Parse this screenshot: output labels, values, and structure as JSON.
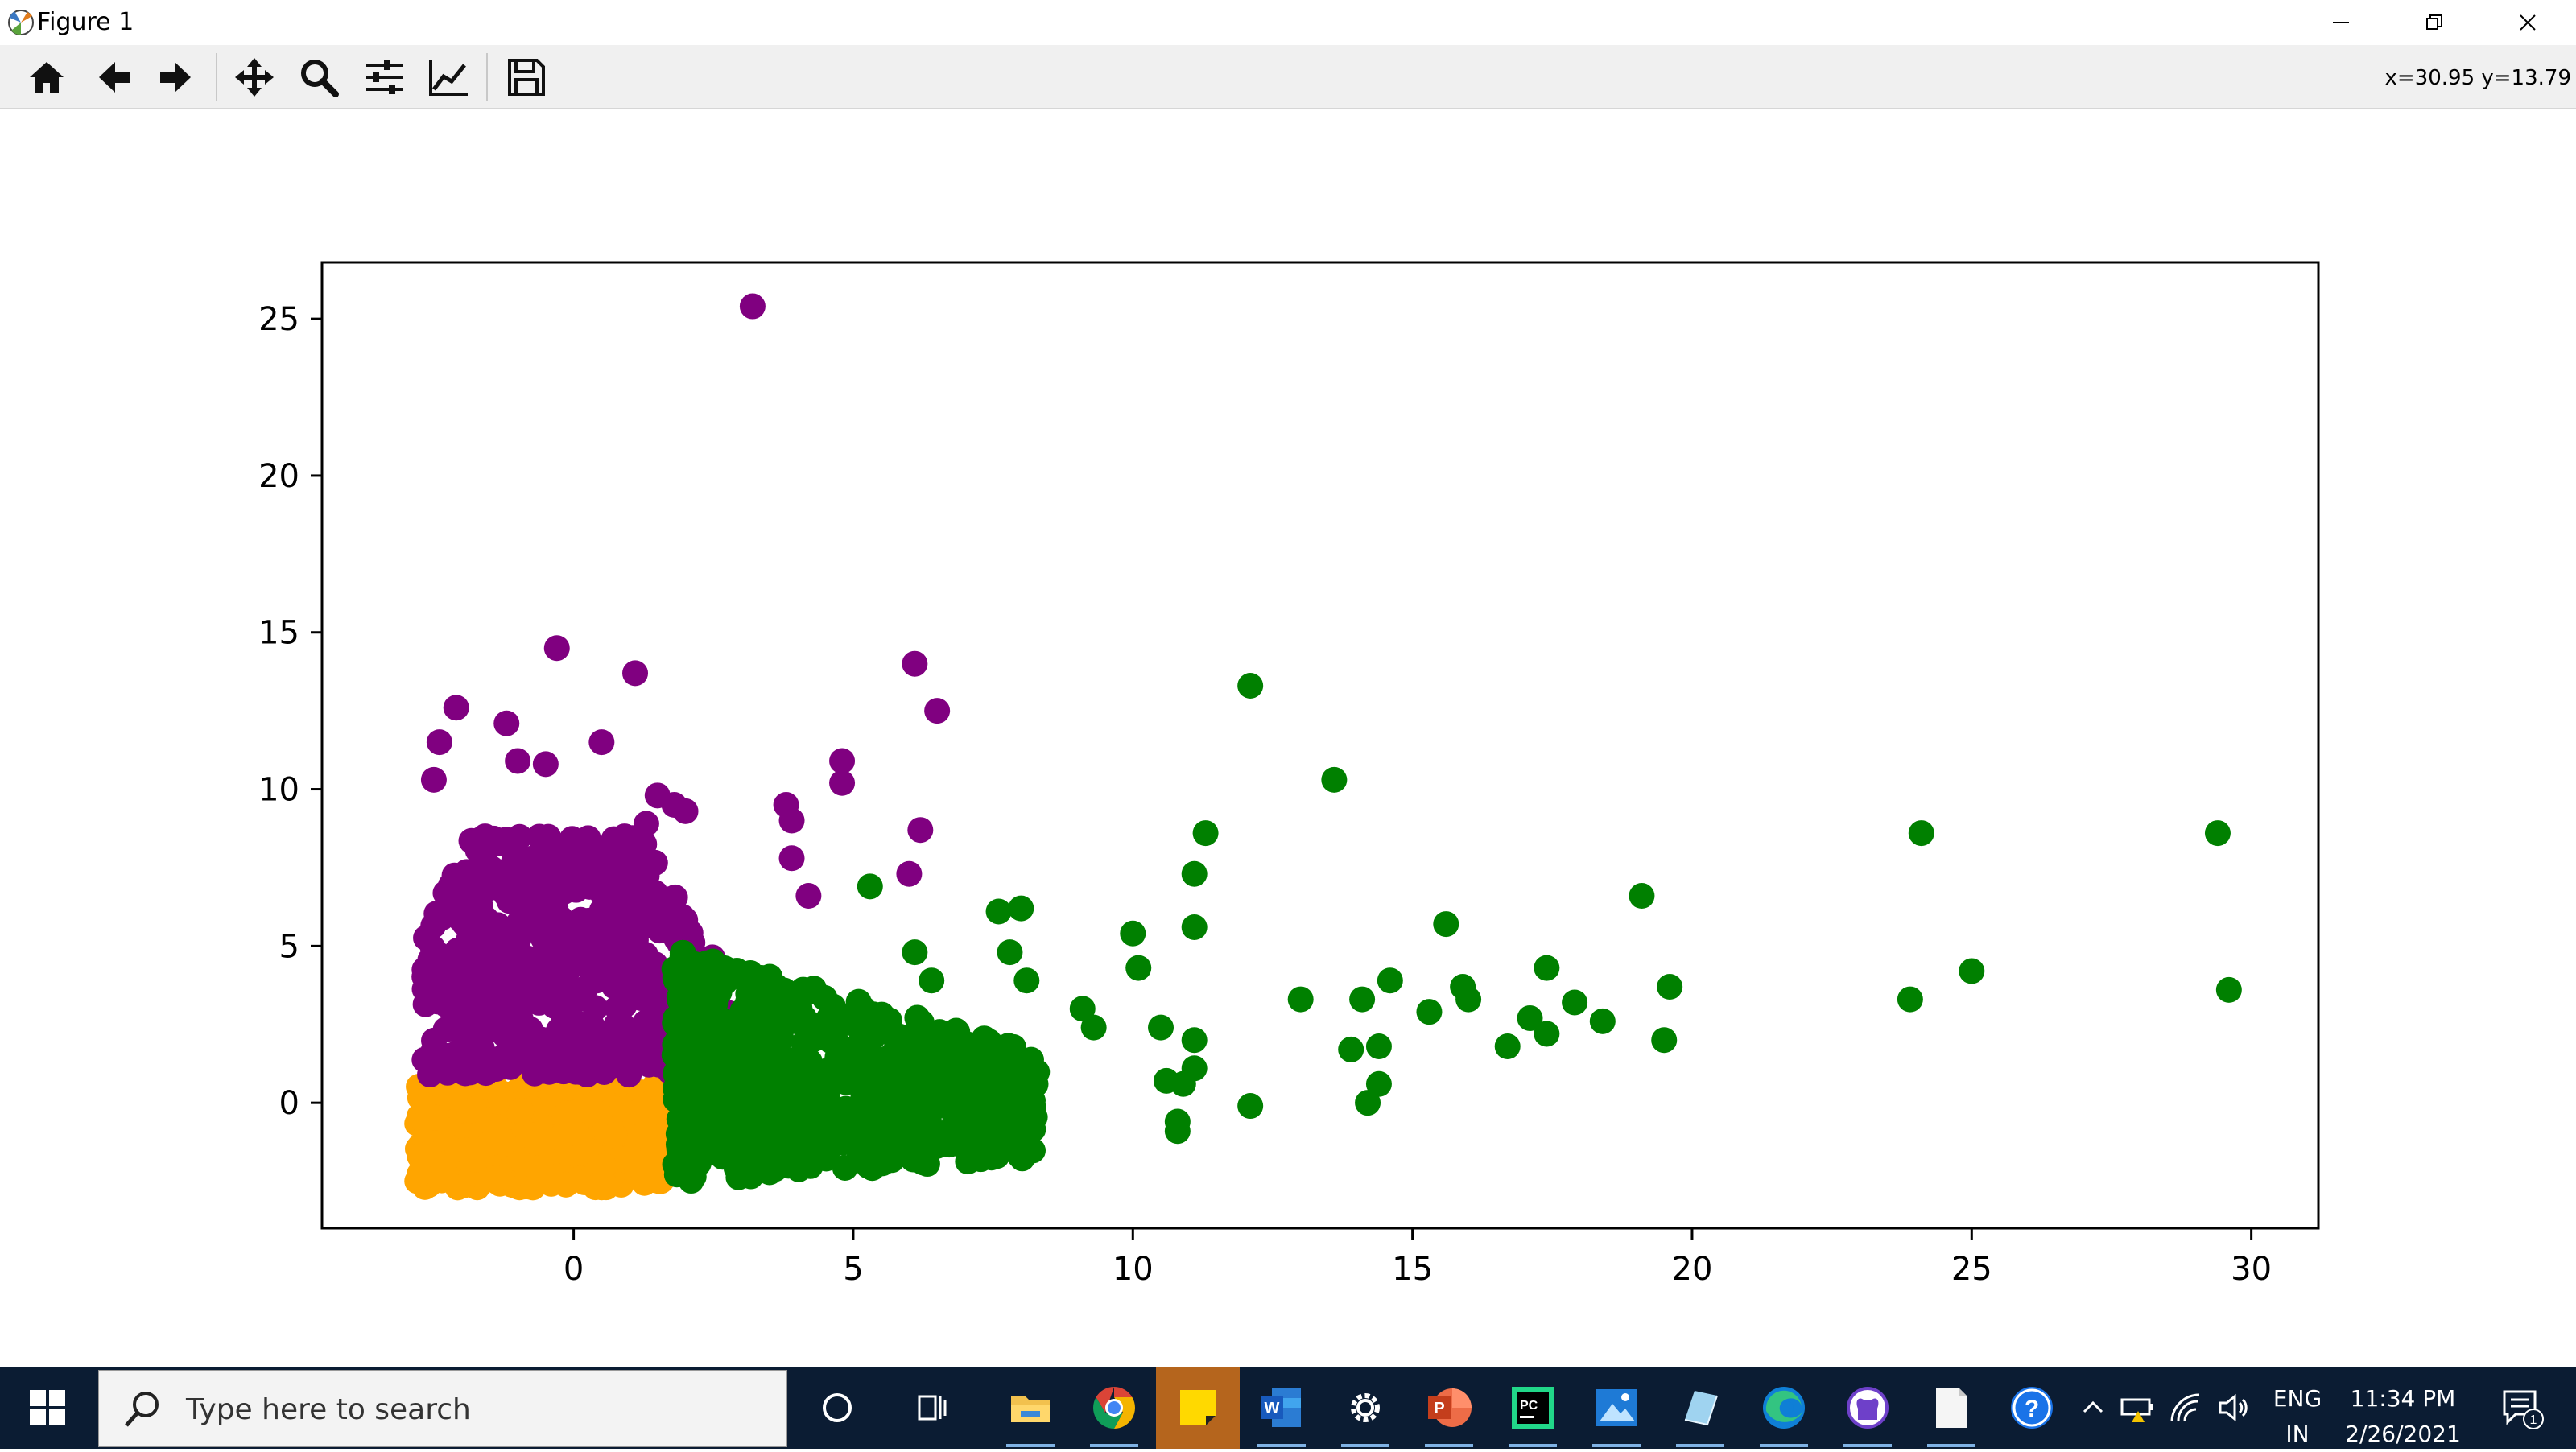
{
  "window": {
    "title": "Figure 1",
    "app_icon": "matplotlib-icon",
    "controls": [
      "minimize-icon",
      "restore-icon",
      "close-icon"
    ]
  },
  "toolbar": {
    "tools": [
      "home-icon",
      "back-arrow-icon",
      "forward-arrow-icon",
      "pan-move-icon",
      "zoom-magnifier-icon",
      "configure-subplots-icon",
      "edit-axis-icon",
      "save-icon"
    ],
    "coordinates": "x=30.95 y=13.79"
  },
  "chart_data": {
    "type": "scatter",
    "title": "",
    "xlabel": "",
    "ylabel": "",
    "xlim": [
      -4.5,
      31.2
    ],
    "ylim": [
      -4.0,
      26.8
    ],
    "xticks": [
      0,
      5,
      10,
      15,
      20,
      25,
      30
    ],
    "yticks": [
      0,
      5,
      10,
      15,
      20,
      25
    ],
    "xtick_labels": [
      "0",
      "5",
      "10",
      "15",
      "20",
      "25",
      "30"
    ],
    "ytick_labels": [
      "0",
      "5",
      "10",
      "15",
      "20",
      "25"
    ],
    "grid": false,
    "legend": "none",
    "clusters": [
      {
        "color": "#ffa500",
        "description_region": {
          "x": [
            -2.8,
            2.1
          ],
          "y": [
            -2.7,
            0.6
          ]
        },
        "count": 600,
        "points": []
      },
      {
        "color": "#800080",
        "region": {
          "x": [
            -2.8,
            4.0
          ],
          "y": [
            0.9,
            8.5
          ]
        },
        "count": 520,
        "points": [
          [
            3.2,
            25.4
          ],
          [
            -0.3,
            14.5
          ],
          [
            1.1,
            13.7
          ],
          [
            6.1,
            14.0
          ],
          [
            6.5,
            12.5
          ],
          [
            -2.1,
            12.6
          ],
          [
            -2.4,
            11.5
          ],
          [
            -1.2,
            12.1
          ],
          [
            0.5,
            11.5
          ],
          [
            -1.0,
            10.9
          ],
          [
            -0.5,
            10.8
          ],
          [
            -2.5,
            10.3
          ],
          [
            4.8,
            10.9
          ],
          [
            4.8,
            10.2
          ],
          [
            3.8,
            9.5
          ],
          [
            3.9,
            9.0
          ],
          [
            1.5,
            9.8
          ],
          [
            1.8,
            9.5
          ],
          [
            2.0,
            9.3
          ],
          [
            6.2,
            8.7
          ],
          [
            1.3,
            8.9
          ],
          [
            3.9,
            7.8
          ],
          [
            4.2,
            6.6
          ],
          [
            6.0,
            7.3
          ]
        ]
      },
      {
        "color": "#008000",
        "region": {
          "x": [
            1.8,
            8.0
          ],
          "y": [
            -2.6,
            5.0
          ]
        },
        "count": 650,
        "points": [
          [
            12.1,
            13.3
          ],
          [
            13.6,
            10.3
          ],
          [
            11.3,
            8.6
          ],
          [
            11.1,
            7.3
          ],
          [
            11.1,
            5.6
          ],
          [
            10.0,
            5.4
          ],
          [
            10.1,
            4.3
          ],
          [
            7.6,
            6.1
          ],
          [
            8.0,
            6.2
          ],
          [
            5.3,
            6.9
          ],
          [
            6.1,
            4.8
          ],
          [
            6.4,
            3.9
          ],
          [
            7.8,
            4.8
          ],
          [
            8.1,
            3.9
          ],
          [
            9.1,
            3.0
          ],
          [
            9.3,
            2.4
          ],
          [
            10.5,
            2.4
          ],
          [
            11.1,
            2.0
          ],
          [
            10.6,
            0.7
          ],
          [
            10.9,
            0.6
          ],
          [
            11.1,
            1.1
          ],
          [
            10.8,
            -0.6
          ],
          [
            10.8,
            -0.9
          ],
          [
            12.1,
            -0.1
          ],
          [
            13.0,
            3.3
          ],
          [
            14.1,
            3.3
          ],
          [
            14.6,
            3.9
          ],
          [
            13.9,
            1.7
          ],
          [
            14.4,
            1.8
          ],
          [
            14.4,
            0.6
          ],
          [
            14.2,
            0.0
          ],
          [
            15.3,
            2.9
          ],
          [
            15.6,
            5.7
          ],
          [
            15.9,
            3.7
          ],
          [
            16.0,
            3.3
          ],
          [
            16.7,
            1.8
          ],
          [
            17.1,
            2.7
          ],
          [
            17.4,
            2.2
          ],
          [
            17.4,
            4.3
          ],
          [
            17.9,
            3.2
          ],
          [
            18.4,
            2.6
          ],
          [
            19.1,
            6.6
          ],
          [
            19.6,
            3.7
          ],
          [
            19.5,
            2.0
          ],
          [
            23.9,
            3.3
          ],
          [
            24.1,
            8.6
          ],
          [
            25.0,
            4.2
          ],
          [
            29.4,
            8.6
          ],
          [
            29.6,
            3.6
          ]
        ]
      }
    ]
  },
  "taskbar": {
    "search_placeholder": "Type here to search",
    "apps": [
      "cortana-icon",
      "task-view-icon",
      "file-explorer-icon",
      "chrome-icon",
      "sticky-notes-icon",
      "word-icon",
      "settings-icon",
      "powerpoint-icon",
      "pycharm-icon",
      "photos-icon",
      "paint3d-icon",
      "edge-icon",
      "github-icon",
      "notepad-icon",
      "help-icon"
    ],
    "language_line1": "ENG",
    "language_line2": "IN",
    "time": "11:34 PM",
    "date": "2/26/2021",
    "notification_count": "1"
  }
}
